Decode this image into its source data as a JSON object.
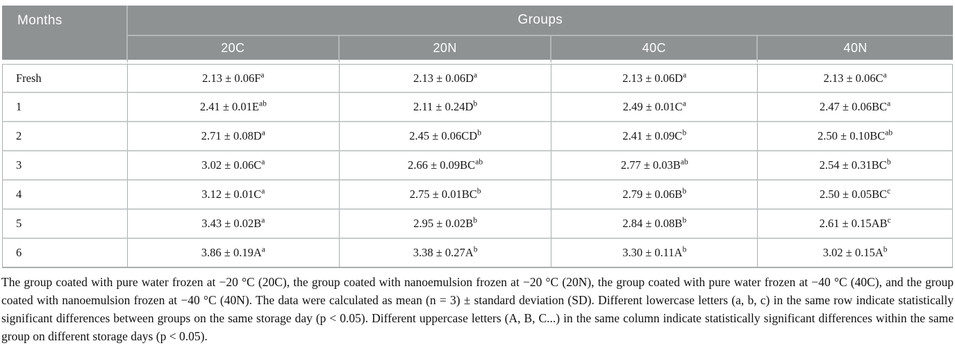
{
  "table": {
    "months_header": "Months",
    "groups_header": "Groups",
    "group_columns": [
      "20C",
      "20N",
      "40C",
      "40N"
    ],
    "rows": [
      {
        "month": "Fresh",
        "cells": [
          {
            "value": "2.13 ± 0.06F",
            "sup": "a"
          },
          {
            "value": "2.13 ± 0.06D",
            "sup": "a"
          },
          {
            "value": "2.13 ± 0.06D",
            "sup": "a"
          },
          {
            "value": "2.13 ± 0.06C",
            "sup": "a"
          }
        ]
      },
      {
        "month": "1",
        "cells": [
          {
            "value": "2.41 ± 0.01E",
            "sup": "ab"
          },
          {
            "value": "2.11 ± 0.24D",
            "sup": "b"
          },
          {
            "value": "2.49 ± 0.01C",
            "sup": "a"
          },
          {
            "value": "2.47 ± 0.06BC",
            "sup": "a"
          }
        ]
      },
      {
        "month": "2",
        "cells": [
          {
            "value": "2.71 ± 0.08D",
            "sup": "a"
          },
          {
            "value": "2.45 ± 0.06CD",
            "sup": "b"
          },
          {
            "value": "2.41 ± 0.09C",
            "sup": "b"
          },
          {
            "value": "2.50 ± 0.10BC",
            "sup": "ab"
          }
        ]
      },
      {
        "month": "3",
        "cells": [
          {
            "value": "3.02 ± 0.06C",
            "sup": "a"
          },
          {
            "value": "2.66 ± 0.09BC",
            "sup": "ab"
          },
          {
            "value": "2.77 ± 0.03B",
            "sup": "ab"
          },
          {
            "value": "2.54 ± 0.31BC",
            "sup": "b"
          }
        ]
      },
      {
        "month": "4",
        "cells": [
          {
            "value": "3.12 ± 0.01C",
            "sup": "a"
          },
          {
            "value": "2.75 ± 0.01BC",
            "sup": "b"
          },
          {
            "value": "2.79 ± 0.06B",
            "sup": "b"
          },
          {
            "value": "2.50 ± 0.05BC",
            "sup": "c"
          }
        ]
      },
      {
        "month": "5",
        "cells": [
          {
            "value": "3.43 ± 0.02B",
            "sup": "a"
          },
          {
            "value": "2.95 ± 0.02B",
            "sup": "b"
          },
          {
            "value": "2.84 ± 0.08B",
            "sup": "b"
          },
          {
            "value": "2.61 ± 0.15AB",
            "sup": "c"
          }
        ]
      },
      {
        "month": "6",
        "cells": [
          {
            "value": "3.86 ± 0.19A",
            "sup": "a"
          },
          {
            "value": "3.38 ± 0.27A",
            "sup": "b"
          },
          {
            "value": "3.30 ± 0.11A",
            "sup": "b"
          },
          {
            "value": "3.02 ± 0.15A",
            "sup": "b"
          }
        ]
      }
    ]
  },
  "footnote": "The group coated with pure water frozen at −20 °C (20C), the group coated with nanoemulsion frozen at −20 °C (20N), the group coated with pure water frozen at −40 °C (40C), and the group coated with nanoemulsion frozen at −40 °C (40N). The data were calculated as mean (n = 3) ± standard deviation (SD). Different lowercase letters (a, b, c) in the same row indicate statistically significant differences between groups on the same storage day (p < 0.05). Different uppercase letters (A, B, C...) in the same column indicate statistically significant differences within the same group on different storage days (p < 0.05).",
  "colors": {
    "header_bg": "#8e9293",
    "header_text": "#ffffff",
    "header_divider": "#b4b8b9",
    "body_border": "#c9cccd",
    "body_border_dark": "#a9aeaf"
  }
}
